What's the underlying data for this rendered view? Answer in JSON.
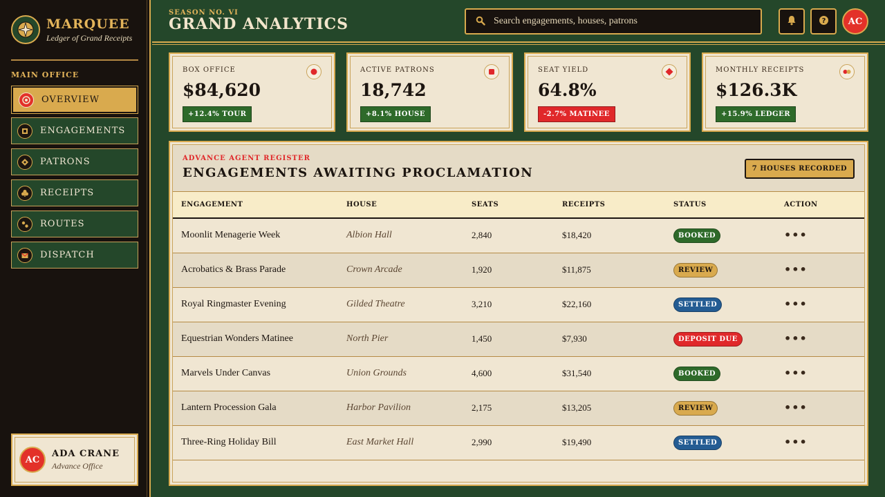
{
  "brand": {
    "title": "MARQUEE",
    "subtitle": "Ledger of Grand Receipts",
    "emblem_icon": "compass-star-icon"
  },
  "nav": {
    "heading": "MAIN OFFICE",
    "items": [
      {
        "label": "OVERVIEW",
        "icon": "target-icon",
        "active": true
      },
      {
        "label": "ENGAGEMENTS",
        "icon": "ticket-icon",
        "active": false
      },
      {
        "label": "PATRONS",
        "icon": "diamond-icon",
        "active": false
      },
      {
        "label": "RECEIPTS",
        "icon": "club-icon",
        "active": false
      },
      {
        "label": "ROUTES",
        "icon": "route-dots-icon",
        "active": false
      },
      {
        "label": "DISPATCH",
        "icon": "envelope-icon",
        "active": false
      }
    ]
  },
  "user": {
    "initials": "AC",
    "name": "ADA CRANE",
    "role": "Advance Office"
  },
  "header": {
    "season": "SEASON NO. VI",
    "title": "GRAND ANALYTICS",
    "search_placeholder": "Search engagements, houses, patrons",
    "avatar_initials": "AC"
  },
  "stats": [
    {
      "label": "BOX OFFICE",
      "value": "$84,620",
      "delta": "+12.4% TOUR",
      "trend": "up",
      "icon": "ring-dot-icon"
    },
    {
      "label": "ACTIVE PATRONS",
      "value": "18,742",
      "delta": "+8.1% HOUSE",
      "trend": "up",
      "icon": "square-icon"
    },
    {
      "label": "SEAT YIELD",
      "value": "64.8%",
      "delta": "-2.7% MATINEE",
      "trend": "down",
      "icon": "diamond-icon"
    },
    {
      "label": "MONTHLY RECEIPTS",
      "value": "$126.3K",
      "delta": "+15.9% LEDGER",
      "trend": "up",
      "icon": "double-dot-icon"
    }
  ],
  "panel": {
    "kicker": "ADVANCE AGENT REGISTER",
    "title": "ENGAGEMENTS AWAITING PROCLAMATION",
    "badge": "7 HOUSES RECORDED",
    "columns": [
      "ENGAGEMENT",
      "HOUSE",
      "SEATS",
      "RECEIPTS",
      "STATUS",
      "ACTION"
    ],
    "rows": [
      {
        "engagement": "Moonlit Menagerie Week",
        "house": "Albion Hall",
        "seats": "2,840",
        "receipts": "$18,420",
        "status": "BOOKED"
      },
      {
        "engagement": "Acrobatics & Brass Parade",
        "house": "Crown Arcade",
        "seats": "1,920",
        "receipts": "$11,875",
        "status": "REVIEW"
      },
      {
        "engagement": "Royal Ringmaster Evening",
        "house": "Gilded Theatre",
        "seats": "3,210",
        "receipts": "$22,160",
        "status": "SETTLED"
      },
      {
        "engagement": "Equestrian Wonders Matinee",
        "house": "North Pier",
        "seats": "1,450",
        "receipts": "$7,930",
        "status": "DEPOSIT DUE"
      },
      {
        "engagement": "Marvels Under Canvas",
        "house": "Union Grounds",
        "seats": "4,600",
        "receipts": "$31,540",
        "status": "BOOKED"
      },
      {
        "engagement": "Lantern Procession Gala",
        "house": "Harbor Pavilion",
        "seats": "2,175",
        "receipts": "$13,205",
        "status": "REVIEW"
      },
      {
        "engagement": "Three-Ring Holiday Bill",
        "house": "East Market Hall",
        "seats": "2,990",
        "receipts": "$19,490",
        "status": "SETTLED"
      }
    ],
    "action_glyph": "•••"
  },
  "colors": {
    "felt_green": "#24472a",
    "ink_dark": "#18120e",
    "gold": "#d9aa4e",
    "parchment": "#f0e6d2",
    "scarlet": "#e0282a",
    "booked": "#2e6a2a",
    "settled": "#245c93"
  }
}
